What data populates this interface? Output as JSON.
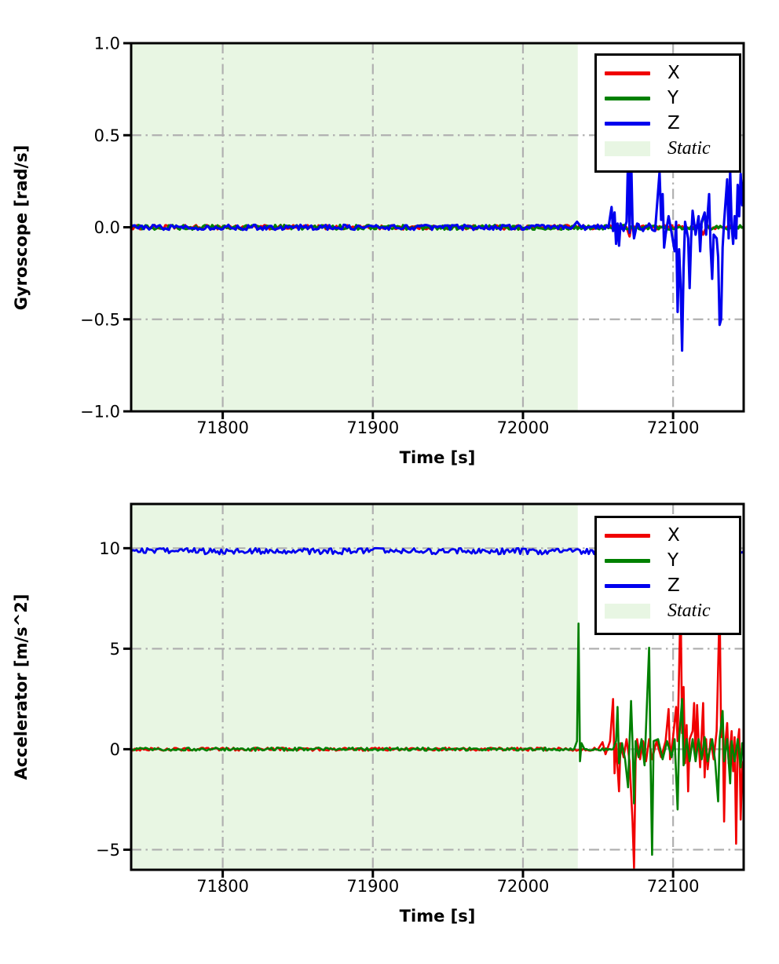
{
  "accent_colors": {
    "x_series": "#f00000",
    "y_series": "#008000",
    "z_series": "#0000ee",
    "static_fill": "#e8f6e3",
    "grid": "#b0b0b0",
    "spine": "#000000"
  },
  "chart_data": [
    {
      "type": "line",
      "title": "",
      "xlabel": "Time [s]",
      "ylabel": "Gyroscope [rad/s]",
      "xlim": [
        71739,
        72147
      ],
      "ylim": [
        -1.0,
        1.0
      ],
      "grid": "dash-dot gray, on",
      "legend_position": "upper right",
      "xticks": [
        {
          "v": 71800,
          "label": "71800"
        },
        {
          "v": 71900,
          "label": "71900"
        },
        {
          "v": 72000,
          "label": "72000"
        },
        {
          "v": 72100,
          "label": "72100"
        }
      ],
      "yticks": [
        {
          "v": 1.0,
          "label": "1.0"
        },
        {
          "v": 0.5,
          "label": "0.5"
        },
        {
          "v": 0.0,
          "label": "0.0"
        },
        {
          "v": -0.5,
          "label": "−0.5"
        },
        {
          "v": -1.0,
          "label": "−1.0"
        }
      ],
      "static_region": {
        "label": "Static",
        "x0": 71739,
        "x1": 72036.5,
        "color": "#e8f6e3"
      },
      "legend": {
        "entries": [
          {
            "label": "X",
            "color": "#f00000",
            "swatch": "line"
          },
          {
            "label": "Y",
            "color": "#008000",
            "swatch": "line"
          },
          {
            "label": "Z",
            "color": "#0000ee",
            "swatch": "line"
          },
          {
            "label": "Static",
            "color": "#e8f6e3",
            "swatch": "patch",
            "italic": true
          }
        ]
      },
      "series": [
        {
          "name": "X",
          "color": "#f00000",
          "width": 3,
          "noise": 0.012,
          "points": [
            [
              71739,
              0
            ],
            [
              72069,
              0
            ],
            [
              72071,
              -0.05
            ],
            [
              72072,
              0
            ],
            [
              72118,
              0
            ],
            [
              72120,
              -0.04
            ],
            [
              72122,
              0
            ],
            [
              72147,
              0
            ]
          ]
        },
        {
          "name": "Y",
          "color": "#008000",
          "width": 3,
          "noise": 0.013,
          "points": [
            [
              71739,
              0
            ],
            [
              72118,
              0
            ],
            [
              72121,
              0.07
            ],
            [
              72123,
              0
            ],
            [
              72147,
              0
            ]
          ]
        },
        {
          "name": "Z",
          "color": "#0000ee",
          "width": 3.1,
          "noise": 0.014,
          "points": [
            [
              71739,
              0
            ],
            [
              72033,
              0
            ],
            [
              72036,
              0.03
            ],
            [
              72039,
              0
            ],
            [
              72057,
              0
            ],
            [
              72059,
              0.11
            ],
            [
              72060,
              -0.02
            ],
            [
              72061,
              0.08
            ],
            [
              72062,
              -0.09
            ],
            [
              72063,
              0.02
            ],
            [
              72064,
              -0.1
            ],
            [
              72065,
              0.02
            ],
            [
              72067,
              -0.02
            ],
            [
              72069,
              0.03
            ],
            [
              72070,
              0.38
            ],
            [
              72071,
              -0.03
            ],
            [
              72072,
              0.4
            ],
            [
              72073,
              0.02
            ],
            [
              72074,
              -0.06
            ],
            [
              72076,
              0.02
            ],
            [
              72080,
              -0.02
            ],
            [
              72084,
              0.02
            ],
            [
              72088,
              -0.02
            ],
            [
              72091,
              0.3
            ],
            [
              72092,
              0.04
            ],
            [
              72093,
              0.18
            ],
            [
              72094,
              -0.11
            ],
            [
              72095,
              -0.04
            ],
            [
              72097,
              0.06
            ],
            [
              72099,
              -0.03
            ],
            [
              72101,
              -0.13
            ],
            [
              72102,
              0.03
            ],
            [
              72103,
              -0.46
            ],
            [
              72104,
              -0.12
            ],
            [
              72105,
              -0.31
            ],
            [
              72106,
              -0.67
            ],
            [
              72107,
              -0.22
            ],
            [
              72108,
              0.03
            ],
            [
              72110,
              -0.06
            ],
            [
              72111,
              -0.33
            ],
            [
              72112,
              -0.06
            ],
            [
              72113,
              0.09
            ],
            [
              72115,
              -0.04
            ],
            [
              72117,
              0.06
            ],
            [
              72118,
              -0.13
            ],
            [
              72119,
              0.03
            ],
            [
              72121,
              0.08
            ],
            [
              72122,
              -0.04
            ],
            [
              72124,
              0.18
            ],
            [
              72125,
              -0.11
            ],
            [
              72126,
              -0.28
            ],
            [
              72127,
              -0.04
            ],
            [
              72129,
              -0.06
            ],
            [
              72130,
              -0.16
            ],
            [
              72131,
              -0.53
            ],
            [
              72132,
              -0.5
            ],
            [
              72133,
              -0.11
            ],
            [
              72134,
              0.03
            ],
            [
              72136,
              0.26
            ],
            [
              72137,
              -0.06
            ],
            [
              72138,
              0.31
            ],
            [
              72139,
              0.01
            ],
            [
              72140,
              -0.09
            ],
            [
              72141,
              0.06
            ],
            [
              72142,
              -0.06
            ],
            [
              72143,
              0.23
            ],
            [
              72144,
              0.06
            ],
            [
              72145,
              0.29
            ],
            [
              72146,
              0.12
            ],
            [
              72147,
              0.26
            ]
          ]
        }
      ]
    },
    {
      "type": "line",
      "title": "",
      "xlabel": "Time [s]",
      "ylabel": "Accelerator [m/s^2]",
      "xlim": [
        71739,
        72147
      ],
      "ylim": [
        -6.0,
        12.2
      ],
      "grid": "dash-dot gray, on",
      "legend_position": "upper right",
      "xticks": [
        {
          "v": 71800,
          "label": "71800"
        },
        {
          "v": 71900,
          "label": "71900"
        },
        {
          "v": 72000,
          "label": "72000"
        },
        {
          "v": 72100,
          "label": "72100"
        }
      ],
      "yticks": [
        {
          "v": 10,
          "label": "10"
        },
        {
          "v": 5,
          "label": "5"
        },
        {
          "v": 0,
          "label": "0"
        },
        {
          "v": -5,
          "label": "−5"
        }
      ],
      "static_region": {
        "label": "Static",
        "x0": 71739,
        "x1": 72036.5,
        "color": "#e8f6e3"
      },
      "legend": {
        "entries": [
          {
            "label": "X",
            "color": "#f00000",
            "swatch": "line"
          },
          {
            "label": "Y",
            "color": "#008000",
            "swatch": "line"
          },
          {
            "label": "Z",
            "color": "#0000ee",
            "swatch": "line"
          },
          {
            "label": "Static",
            "color": "#e8f6e3",
            "swatch": "patch",
            "italic": true
          }
        ]
      },
      "series": [
        {
          "name": "X",
          "color": "#f00000",
          "width": 2.6,
          "noise": 0.08,
          "points": [
            [
              71739,
              0
            ],
            [
              72050,
              0
            ],
            [
              72053,
              0.35
            ],
            [
              72055,
              -0.25
            ],
            [
              72058,
              0.4
            ],
            [
              72060,
              2.5
            ],
            [
              72061,
              -1.2
            ],
            [
              72062,
              0.3
            ],
            [
              72064,
              -2.1
            ],
            [
              72065,
              0.3
            ],
            [
              72067,
              -0.4
            ],
            [
              72069,
              0.5
            ],
            [
              72071,
              -0.6
            ],
            [
              72073,
              -3.6
            ],
            [
              72074,
              -5.9
            ],
            [
              72075,
              -0.6
            ],
            [
              72076,
              0.5
            ],
            [
              72078,
              -0.5
            ],
            [
              72080,
              0.4
            ],
            [
              72082,
              -0.6
            ],
            [
              72084,
              0.5
            ],
            [
              72086,
              -0.5
            ],
            [
              72089,
              0.4
            ],
            [
              72092,
              -0.4
            ],
            [
              72095,
              0.4
            ],
            [
              72097,
              2.0
            ],
            [
              72098,
              -0.5
            ],
            [
              72100,
              0.6
            ],
            [
              72102,
              2.1
            ],
            [
              72103,
              0.4
            ],
            [
              72105,
              7.5
            ],
            [
              72106,
              0.8
            ],
            [
              72107,
              3.1
            ],
            [
              72108,
              -0.7
            ],
            [
              72109,
              1.2
            ],
            [
              72110,
              -2.1
            ],
            [
              72111,
              0.5
            ],
            [
              72113,
              0.9
            ],
            [
              72114,
              2.3
            ],
            [
              72115,
              -0.6
            ],
            [
              72116,
              2.2
            ],
            [
              72117,
              0.4
            ],
            [
              72118,
              -0.9
            ],
            [
              72120,
              2.3
            ],
            [
              72121,
              -1.4
            ],
            [
              72122,
              0.5
            ],
            [
              72123,
              -1.0
            ],
            [
              72125,
              0.5
            ],
            [
              72127,
              -0.5
            ],
            [
              72129,
              0.9
            ],
            [
              72131,
              7.2
            ],
            [
              72132,
              0.6
            ],
            [
              72133,
              1.6
            ],
            [
              72134,
              -3.6
            ],
            [
              72135,
              0.5
            ],
            [
              72136,
              1.3
            ],
            [
              72137,
              -0.7
            ],
            [
              72139,
              0.9
            ],
            [
              72140,
              -1.1
            ],
            [
              72141,
              0.6
            ],
            [
              72142,
              -4.7
            ],
            [
              72143,
              0.3
            ],
            [
              72144,
              1.0
            ],
            [
              72145,
              -3.5
            ],
            [
              72146,
              -0.9
            ],
            [
              72147,
              -0.5
            ]
          ]
        },
        {
          "name": "Y",
          "color": "#008000",
          "width": 2.6,
          "noise": 0.08,
          "points": [
            [
              71739,
              0
            ],
            [
              72034,
              0
            ],
            [
              72036,
              0.4
            ],
            [
              72037,
              6.25
            ],
            [
              72038,
              -0.6
            ],
            [
              72039,
              0.3
            ],
            [
              72041,
              0
            ],
            [
              72060,
              0
            ],
            [
              72062,
              0.4
            ],
            [
              72063,
              2.1
            ],
            [
              72064,
              -0.7
            ],
            [
              72066,
              0.3
            ],
            [
              72068,
              -0.5
            ],
            [
              72070,
              -1.9
            ],
            [
              72071,
              0.4
            ],
            [
              72072,
              2.4
            ],
            [
              72073,
              0.3
            ],
            [
              72074,
              -2.7
            ],
            [
              72075,
              0.4
            ],
            [
              72077,
              -0.4
            ],
            [
              72079,
              0.5
            ],
            [
              72081,
              -0.8
            ],
            [
              72084,
              5.05
            ],
            [
              72085,
              -0.7
            ],
            [
              72086,
              -5.25
            ],
            [
              72087,
              0.4
            ],
            [
              72090,
              0.5
            ],
            [
              72093,
              -0.5
            ],
            [
              72096,
              0.4
            ],
            [
              72099,
              -0.4
            ],
            [
              72101,
              0.5
            ],
            [
              72103,
              -3.0
            ],
            [
              72104,
              0.5
            ],
            [
              72106,
              2.5
            ],
            [
              72107,
              -0.8
            ],
            [
              72109,
              0.5
            ],
            [
              72111,
              -0.6
            ],
            [
              72113,
              0.5
            ],
            [
              72115,
              -0.6
            ],
            [
              72117,
              0.5
            ],
            [
              72119,
              -0.5
            ],
            [
              72121,
              0.6
            ],
            [
              72123,
              -0.6
            ],
            [
              72126,
              0.5
            ],
            [
              72128,
              -0.6
            ],
            [
              72130,
              -2.6
            ],
            [
              72131,
              0.5
            ],
            [
              72133,
              1.9
            ],
            [
              72134,
              -0.6
            ],
            [
              72136,
              0.5
            ],
            [
              72138,
              -1.7
            ],
            [
              72139,
              0.4
            ],
            [
              72141,
              -0.6
            ],
            [
              72143,
              0.5
            ],
            [
              72145,
              -0.9
            ],
            [
              72146,
              0.3
            ],
            [
              72147,
              -0.3
            ]
          ]
        },
        {
          "name": "Z",
          "color": "#0000ee",
          "width": 2.8,
          "noise": 0.15,
          "points": [
            [
              71739,
              9.85
            ],
            [
              72147,
              9.85
            ]
          ]
        }
      ]
    }
  ]
}
